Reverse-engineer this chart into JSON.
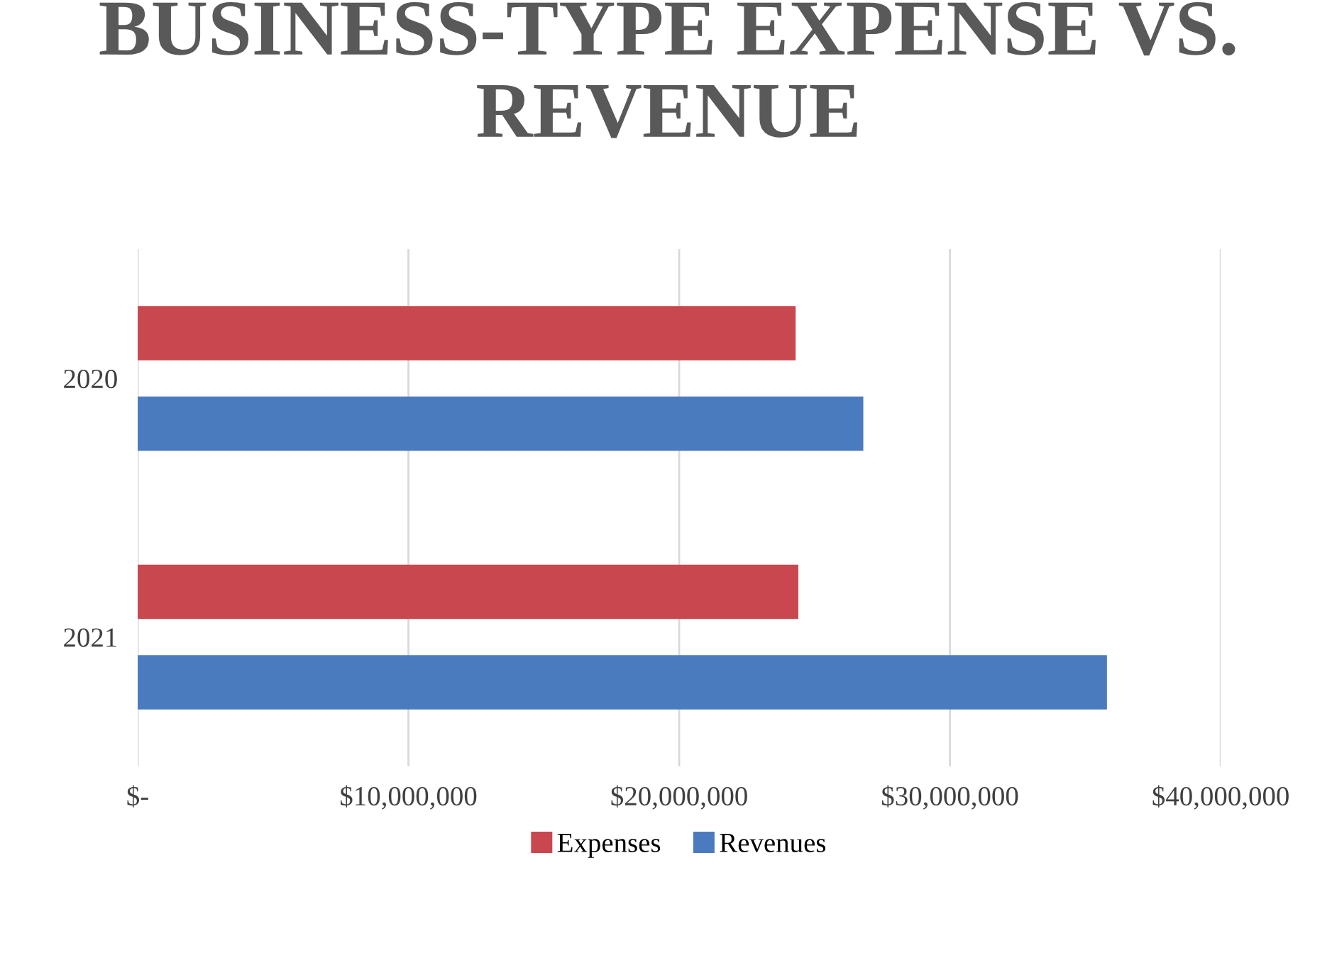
{
  "chart_data": {
    "type": "bar",
    "orientation": "horizontal",
    "title": "BUSINESS-TYPE EXPENSE VS. REVENUE",
    "categories": [
      "2020",
      "2021"
    ],
    "series": [
      {
        "name": "Expenses",
        "color": "#c9474f",
        "values": [
          24300000,
          24400000
        ]
      },
      {
        "name": "Revenues",
        "color": "#4a7bbf",
        "values": [
          26800000,
          35800000
        ]
      }
    ],
    "xlim": [
      0,
      40000000
    ],
    "xticks": [
      {
        "value": 0,
        "label": "$-"
      },
      {
        "value": 10000000,
        "label": "$10,000,000"
      },
      {
        "value": 20000000,
        "label": "$20,000,000"
      },
      {
        "value": 30000000,
        "label": "$30,000,000"
      },
      {
        "value": 40000000,
        "label": "$40,000,000"
      }
    ],
    "grid": "x",
    "legend": "bottom"
  }
}
